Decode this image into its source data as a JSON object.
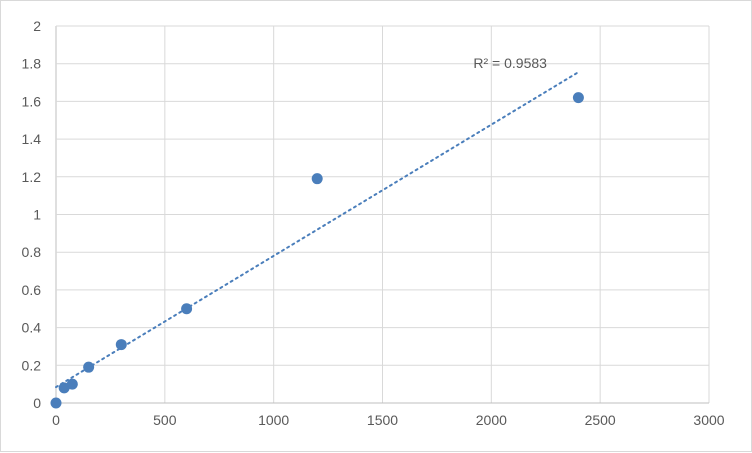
{
  "chart_data": {
    "type": "scatter",
    "title": "",
    "xlabel": "",
    "ylabel": "",
    "xlim": [
      0,
      3000
    ],
    "ylim": [
      0,
      2
    ],
    "x_ticks": [
      0,
      500,
      1000,
      1500,
      2000,
      2500,
      3000
    ],
    "y_ticks": [
      0,
      0.2,
      0.4,
      0.6,
      0.8,
      1,
      1.2,
      1.4,
      1.6,
      1.8,
      2
    ],
    "grid": true,
    "series": [
      {
        "x": [
          0,
          37.5,
          75,
          150,
          300,
          600,
          1200,
          2400
        ],
        "y": [
          0,
          0.08,
          0.1,
          0.19,
          0.31,
          0.5,
          1.19,
          1.62
        ],
        "color": "#4a7ebb"
      }
    ],
    "trendline": {
      "type": "linear",
      "style": "dotted",
      "color": "#4a7ebb",
      "label": "R² = 0.9583"
    }
  }
}
